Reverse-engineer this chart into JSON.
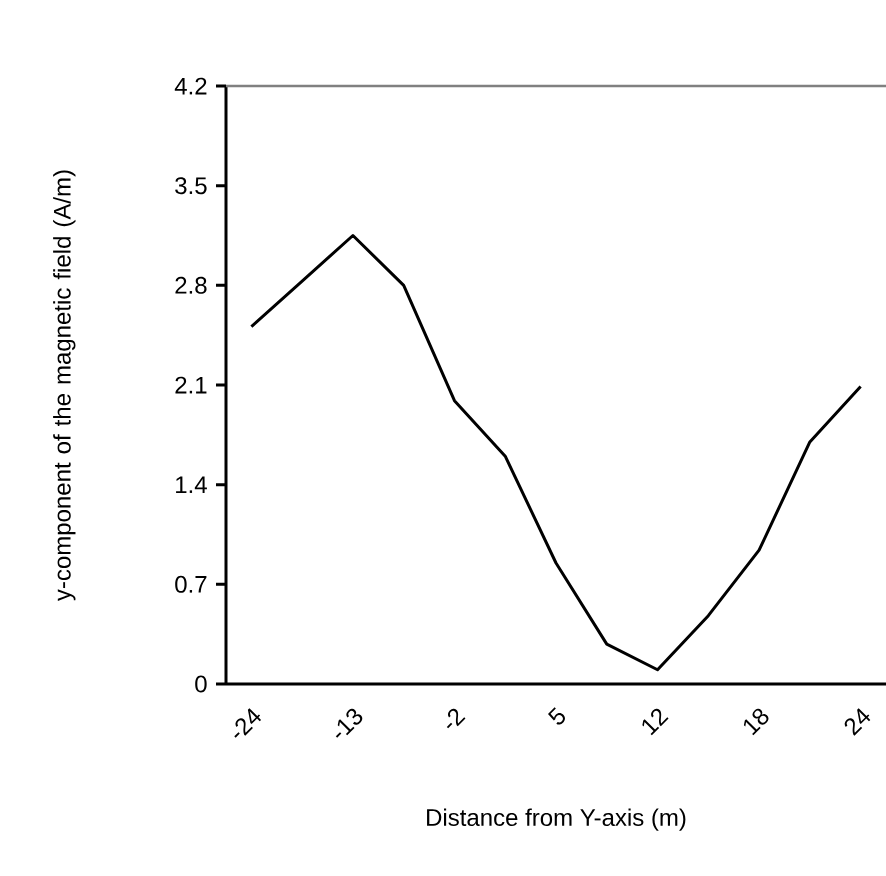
{
  "chart_data": {
    "type": "line",
    "xlabel": "Distance from Y-axis (m)",
    "ylabel": "y-component of the magnetic field (A/m)",
    "categories": [
      "-24",
      null,
      "-13",
      null,
      "-2",
      null,
      "5",
      null,
      "12",
      null,
      "18",
      null,
      "24"
    ],
    "values": [
      2.51,
      2.83,
      3.15,
      2.8,
      1.99,
      1.6,
      0.85,
      0.28,
      0.1,
      0.48,
      0.94,
      1.7,
      2.09
    ],
    "color": "#000000",
    "ylim": [
      0,
      4.2
    ],
    "yticks": [
      0,
      0.7,
      1.4,
      2.1,
      2.8,
      3.5,
      4.2
    ]
  }
}
